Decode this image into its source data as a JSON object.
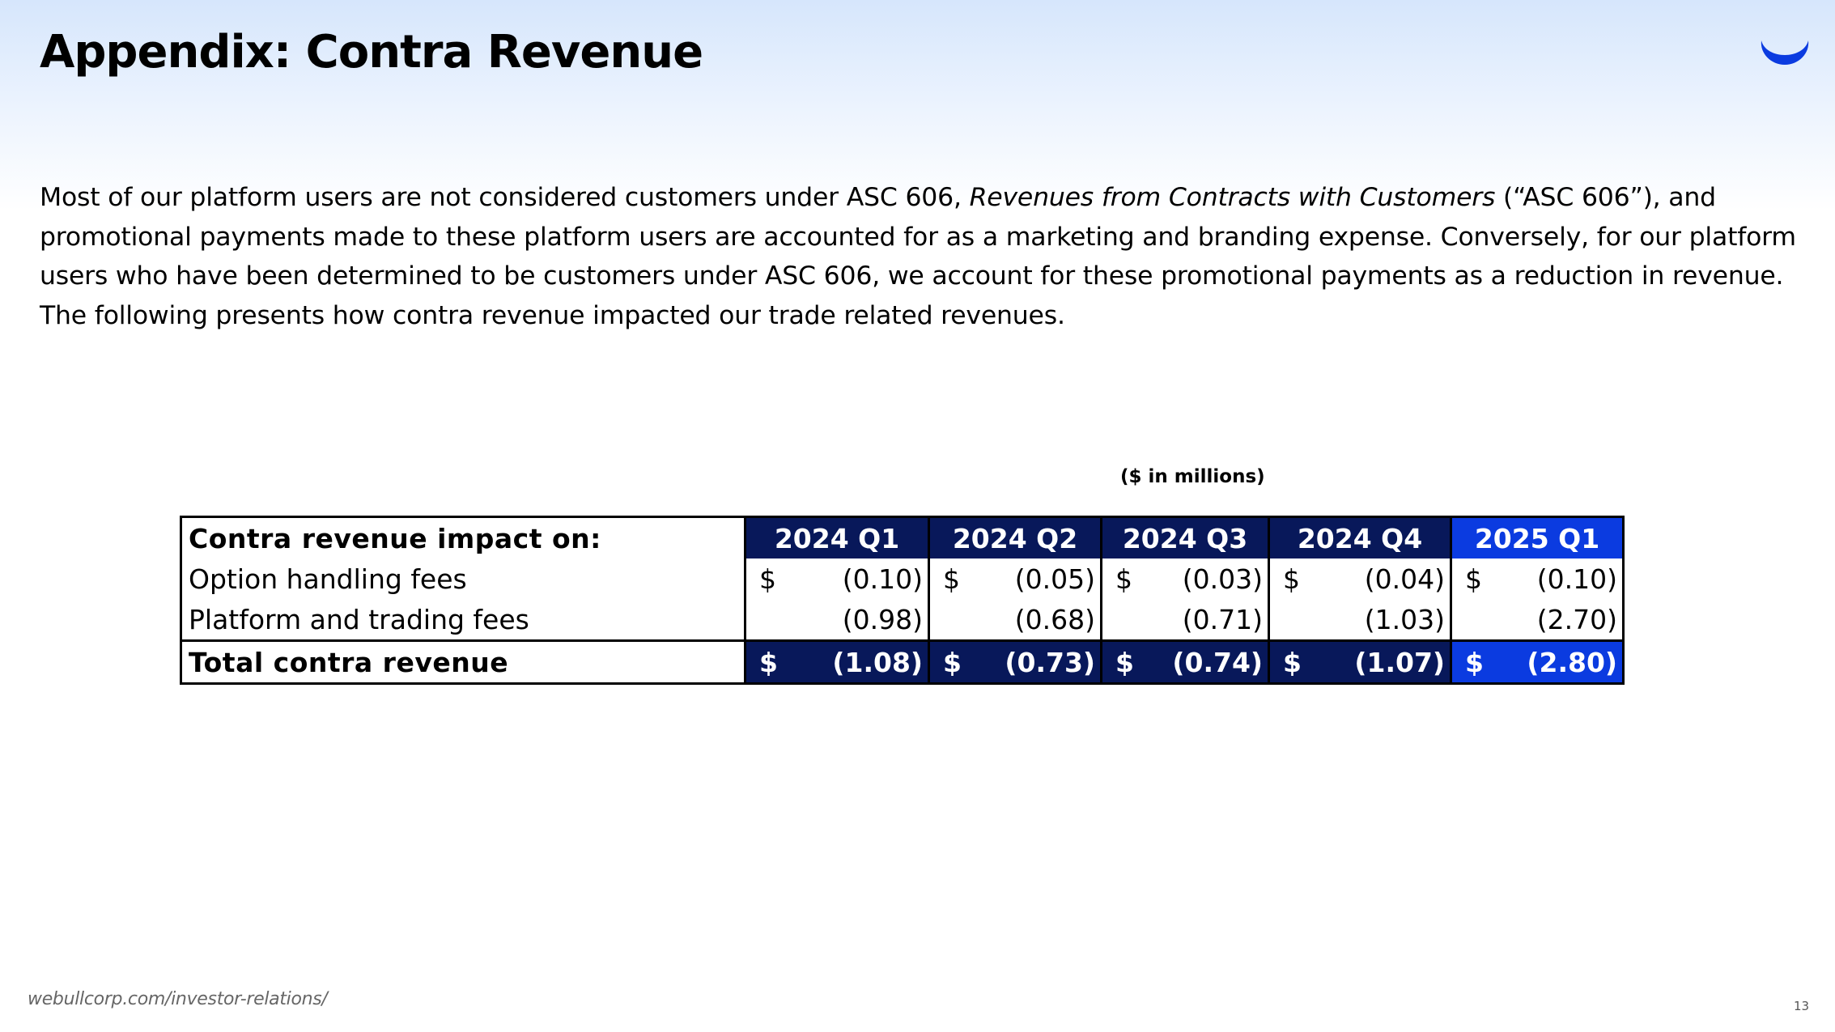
{
  "title": "Appendix: Contra Revenue",
  "logo_icon": "webull-smile-logo-icon",
  "brand_color": "#0b3be0",
  "intro": {
    "part1": "Most of our platform users are not considered customers under ASC 606, ",
    "italic": "Revenues from Contracts with Customers",
    "part2": " (“ASC 606”), and promotional payments made to these platform users are accounted for as a marketing and branding expense. Conversely, for our platform users who have been determined to be customers under ASC 606, we account for these promotional payments as a reduction in revenue. The following presents how contra revenue impacted our trade related revenues."
  },
  "units_note": "($ in millions)",
  "table": {
    "header_label": "Contra revenue impact on:",
    "columns": [
      "2024 Q1",
      "2024 Q2",
      "2024 Q3",
      "2024 Q4",
      "2025 Q1"
    ],
    "rows": [
      {
        "label": "Option handling fees",
        "cells": [
          {
            "currency": "$",
            "value": "(0.10)"
          },
          {
            "currency": "$",
            "value": "(0.05)"
          },
          {
            "currency": "$",
            "value": "(0.03)"
          },
          {
            "currency": "$",
            "value": "(0.04)"
          },
          {
            "currency": "$",
            "value": "(0.10)"
          }
        ]
      },
      {
        "label": "Platform and trading fees",
        "cells": [
          {
            "currency": "",
            "value": "(0.98)"
          },
          {
            "currency": "",
            "value": "(0.68)"
          },
          {
            "currency": "",
            "value": "(0.71)"
          },
          {
            "currency": "",
            "value": "(1.03)"
          },
          {
            "currency": "",
            "value": "(2.70)"
          }
        ]
      }
    ],
    "total": {
      "label": "Total contra revenue",
      "cells": [
        {
          "currency": "$",
          "value": "(1.08)"
        },
        {
          "currency": "$",
          "value": "(0.73)"
        },
        {
          "currency": "$",
          "value": "(0.74)"
        },
        {
          "currency": "$",
          "value": "(1.07)"
        },
        {
          "currency": "$",
          "value": "(2.80)"
        }
      ]
    }
  },
  "footer": {
    "url": "webullcorp.com/investor-relations/",
    "page_number": "13"
  }
}
